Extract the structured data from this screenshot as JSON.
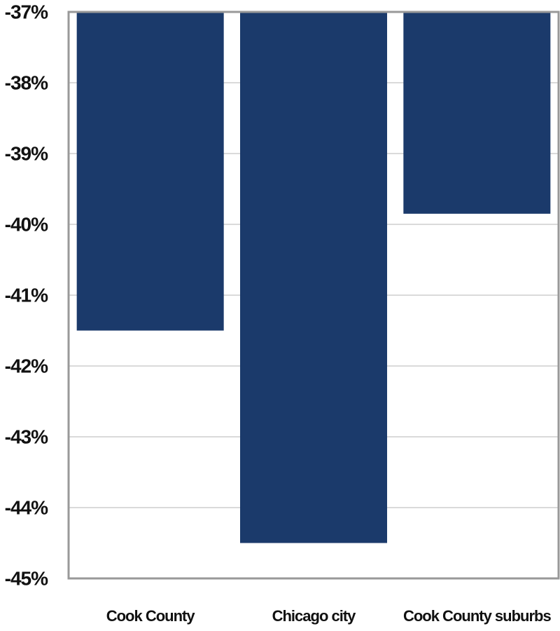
{
  "chart_data": {
    "type": "bar",
    "categories": [
      "Cook County",
      "Chicago city",
      "Cook County suburbs"
    ],
    "values": [
      -41.5,
      -44.5,
      -39.85
    ],
    "color": "#1b3a6b",
    "ylim": [
      -45,
      -37
    ],
    "yticks": [
      {
        "value": -45,
        "label": "-45%"
      },
      {
        "value": -44,
        "label": "-44%"
      },
      {
        "value": -43,
        "label": "-43%"
      },
      {
        "value": -42,
        "label": "-42%"
      },
      {
        "value": -41,
        "label": "-41%"
      },
      {
        "value": -40,
        "label": "-40%"
      },
      {
        "value": -39,
        "label": "-39%"
      },
      {
        "value": -38,
        "label": "-38%"
      },
      {
        "value": -37,
        "label": "-37%"
      }
    ],
    "grid": true
  }
}
